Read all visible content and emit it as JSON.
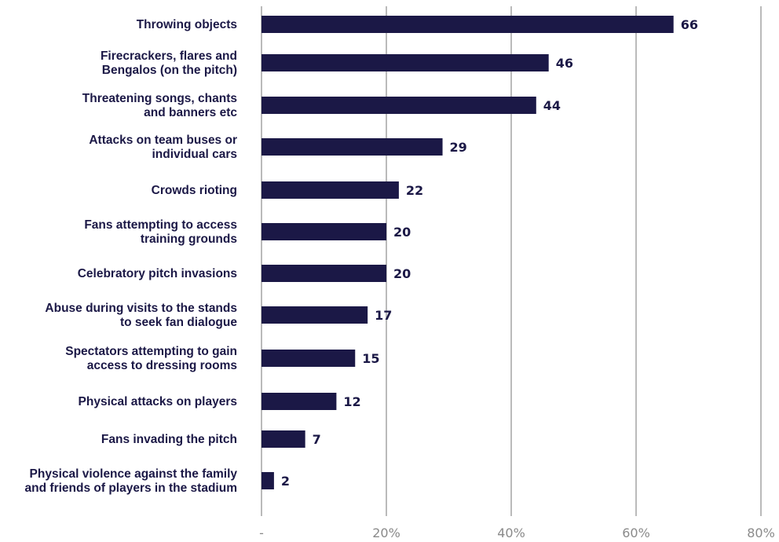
{
  "chart_data": {
    "type": "bar",
    "orientation": "horizontal",
    "categories": [
      "Throwing objects",
      "Firecrackers, flares and\nBengalos (on the pitch)",
      "Threatening songs, chants\nand banners etc",
      "Attacks on team buses or\nindividual cars",
      "Crowds rioting",
      "Fans attempting to access\ntraining grounds",
      "Celebratory pitch invasions",
      "Abuse during visits to the stands\nto seek fan dialogue",
      "Spectators attempting to gain\naccess to dressing rooms",
      "Physical attacks on players",
      "Fans invading the pitch",
      "Physical violence against the family\nand friends of players in the stadium"
    ],
    "values": [
      66,
      46,
      44,
      29,
      22,
      20,
      20,
      17,
      15,
      12,
      7,
      2
    ],
    "value_labels": [
      "66",
      "46",
      "44",
      "29",
      "22",
      "20",
      "20",
      "17",
      "15",
      "12",
      "7",
      "2"
    ],
    "xlim": [
      0,
      80
    ],
    "xticks": [
      0,
      20,
      40,
      60,
      80
    ],
    "xtick_labels": [
      "-",
      "20%",
      "40%",
      "60%",
      "80%"
    ],
    "grid": true,
    "colors": {
      "bar": "#1b1846",
      "grid": "#a9a9a9",
      "tick_text": "#8a8a8a",
      "label_text": "#1b1846"
    }
  }
}
